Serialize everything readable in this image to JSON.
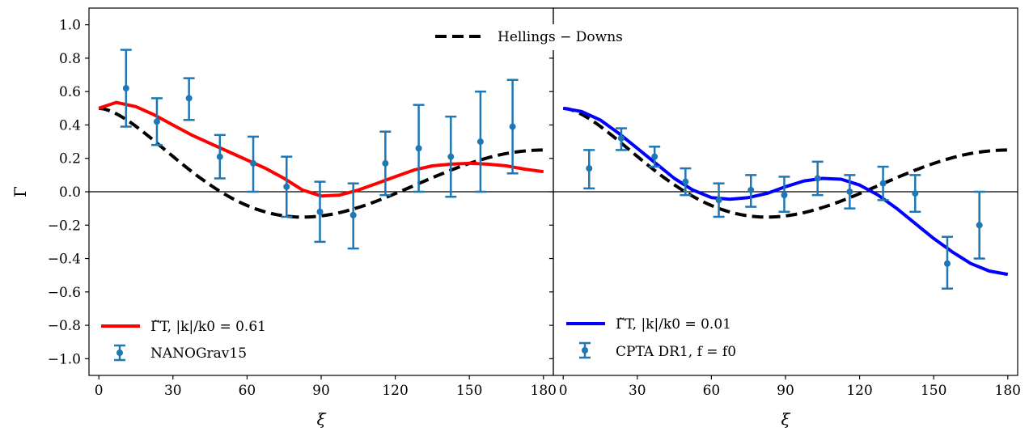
{
  "chart_data": [
    {
      "type": "line",
      "panel": "left",
      "xlabel": "ξ",
      "ylabel": "Γ",
      "xlim": [
        -4,
        184
      ],
      "ylim": [
        -1.1,
        1.1
      ],
      "xticks": [
        0,
        30,
        60,
        90,
        120,
        150,
        180
      ],
      "yticks": [
        -1.0,
        -0.8,
        -0.6,
        -0.4,
        -0.2,
        0.0,
        0.2,
        0.4,
        0.6,
        0.8,
        1.0
      ],
      "xtick_labels": [
        "0",
        "30",
        "60",
        "90",
        "120",
        "150",
        "180"
      ],
      "ytick_labels": [
        "−1.0",
        "−0.8",
        "−0.6",
        "−0.4",
        "−0.2",
        "0.0",
        "0.2",
        "0.4",
        "0.6",
        "0.8",
        "1.0"
      ],
      "grid": false,
      "legend_placement": "lower-left",
      "legend_main": "Hellings − Downs",
      "series": [
        {
          "name": "Γ̃T, |k|/k0 = 0.61",
          "legend_label": "Γ̃T, |k|/k0 = 0.61",
          "kind": "line",
          "color": "#ff0000",
          "x": [
            0,
            7,
            15,
            22.5,
            30,
            37.5,
            45,
            52.5,
            60,
            67.5,
            75,
            82.5,
            90,
            97.5,
            105,
            112.5,
            120,
            127.5,
            135,
            142.5,
            150,
            157.5,
            165,
            172.5,
            180
          ],
          "y": [
            0.5,
            0.535,
            0.51,
            0.46,
            0.4,
            0.34,
            0.29,
            0.24,
            0.19,
            0.14,
            0.08,
            0.01,
            -0.025,
            -0.02,
            0.01,
            0.05,
            0.09,
            0.13,
            0.155,
            0.165,
            0.17,
            0.165,
            0.155,
            0.135,
            0.12
          ]
        },
        {
          "name": "NANOGrav15",
          "legend_label": "NANOGrav15",
          "kind": "errorbar",
          "color": "#1f77b4",
          "x": [
            11,
            23.5,
            36.5,
            49,
            62.5,
            76,
            89.5,
            103,
            116,
            129.5,
            142.5,
            154.5,
            167.5
          ],
          "y": [
            0.62,
            0.42,
            0.56,
            0.21,
            0.17,
            0.03,
            -0.12,
            -0.14,
            0.17,
            0.26,
            0.21,
            0.3,
            0.39
          ],
          "yerr_low": [
            0.39,
            0.28,
            0.43,
            0.08,
            0.0,
            -0.15,
            -0.3,
            -0.34,
            -0.02,
            0.0,
            -0.03,
            0.0,
            0.11
          ],
          "yerr_high": [
            0.85,
            0.56,
            0.68,
            0.34,
            0.33,
            0.21,
            0.06,
            0.05,
            0.36,
            0.52,
            0.45,
            0.6,
            0.67
          ]
        },
        {
          "name": "Hellings − Downs",
          "kind": "hd-dashed",
          "color": "#000000"
        }
      ]
    },
    {
      "type": "line",
      "panel": "right",
      "xlabel": "ξ",
      "xlim": [
        -4,
        184
      ],
      "ylim": [
        -1.1,
        1.1
      ],
      "xticks": [
        0,
        30,
        60,
        90,
        120,
        150,
        180
      ],
      "xtick_labels": [
        "0",
        "30",
        "60",
        "90",
        "120",
        "150",
        "180"
      ],
      "grid": false,
      "legend_placement": "lower-left",
      "series": [
        {
          "name": "Γ̃T, |k|/k0 = 0.01",
          "legend_label": "Γ̃T, |k|/k0 = 0.01",
          "kind": "line",
          "color": "#0000ff",
          "x": [
            0,
            7.5,
            15,
            22.5,
            30,
            37.5,
            45,
            52.5,
            60,
            67.5,
            75,
            82.5,
            90,
            97.5,
            105,
            112.5,
            120,
            127.5,
            135,
            142.5,
            150,
            157.5,
            165,
            172.5,
            180
          ],
          "y": [
            0.5,
            0.48,
            0.43,
            0.35,
            0.26,
            0.17,
            0.08,
            0.01,
            -0.035,
            -0.045,
            -0.035,
            -0.01,
            0.03,
            0.065,
            0.08,
            0.075,
            0.04,
            -0.02,
            -0.1,
            -0.19,
            -0.28,
            -0.36,
            -0.43,
            -0.475,
            -0.495
          ]
        },
        {
          "name": "CPTA DR1, f = f0",
          "legend_label": "CPTA DR1, f = f0",
          "kind": "errorbar",
          "color": "#1f77b4",
          "x": [
            10.5,
            23.5,
            37,
            49.5,
            63,
            76,
            89.5,
            103,
            116,
            129.5,
            142.5,
            155.5,
            168.5
          ],
          "y": [
            0.14,
            0.32,
            0.21,
            0.06,
            -0.05,
            0.01,
            -0.02,
            0.08,
            0.0,
            0.05,
            -0.01,
            -0.43,
            -0.2
          ],
          "yerr_low": [
            0.02,
            0.25,
            0.15,
            -0.02,
            -0.15,
            -0.09,
            -0.12,
            -0.02,
            -0.1,
            -0.05,
            -0.12,
            -0.58,
            -0.4
          ],
          "yerr_high": [
            0.25,
            0.38,
            0.27,
            0.14,
            0.05,
            0.1,
            0.09,
            0.18,
            0.1,
            0.15,
            0.1,
            -0.27,
            0.0
          ]
        },
        {
          "name": "Hellings − Downs",
          "kind": "hd-dashed",
          "color": "#000000"
        }
      ]
    }
  ]
}
